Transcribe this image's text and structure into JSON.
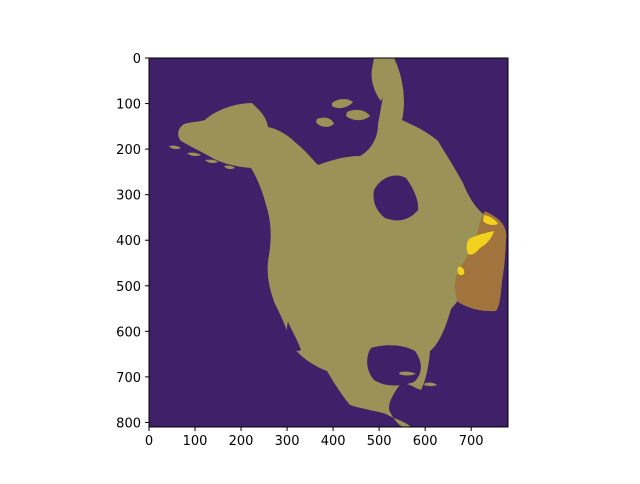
{
  "chart_data": {
    "type": "heatmap",
    "title": "",
    "xlabel": "",
    "ylabel": "",
    "xlim": [
      0,
      780
    ],
    "ylim": [
      810,
      0
    ],
    "x_ticks": [
      0,
      100,
      200,
      300,
      400,
      500,
      600,
      700
    ],
    "y_ticks": [
      0,
      100,
      200,
      300,
      400,
      500,
      600,
      700,
      800
    ],
    "x_tick_labels": [
      "0",
      "100",
      "200",
      "300",
      "400",
      "500",
      "600",
      "700"
    ],
    "y_tick_labels": [
      "0",
      "100",
      "200",
      "300",
      "400",
      "500",
      "600",
      "700",
      "800"
    ],
    "grid": false,
    "colors": {
      "ocean": "#3f2169",
      "land": "#9a9256",
      "highlight_region": "#a1743d",
      "highlight_land": "#f2d21f",
      "axes": "#000000"
    }
  }
}
